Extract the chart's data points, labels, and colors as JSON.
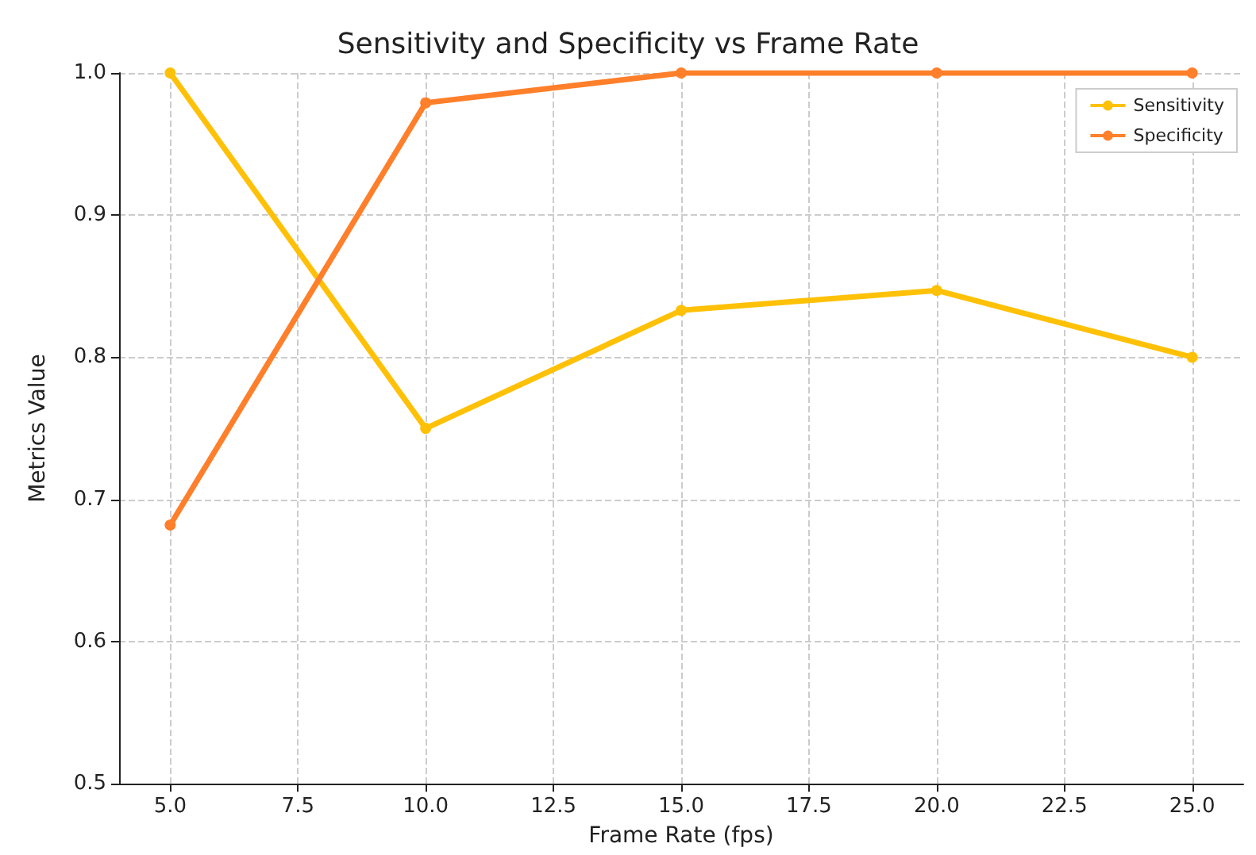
{
  "chart_data": {
    "type": "line",
    "title": "Sensitivity and Specificity vs Frame Rate",
    "xlabel": "Frame Rate (fps)",
    "ylabel": "Metrics Value",
    "x": [
      5,
      10,
      15,
      20,
      25
    ],
    "series": [
      {
        "name": "Sensitivity",
        "color": "#ffc107",
        "values": [
          1.0,
          0.75,
          0.833,
          0.847,
          0.8
        ]
      },
      {
        "name": "Specificity",
        "color": "#ff7f2a",
        "values": [
          0.682,
          0.979,
          1.0,
          1.0,
          1.0
        ]
      }
    ],
    "xlim": [
      4,
      26
    ],
    "xticks": [
      {
        "value": 5,
        "label": "5.0"
      },
      {
        "value": 7.5,
        "label": "7.5"
      },
      {
        "value": 10,
        "label": "10.0"
      },
      {
        "value": 12.5,
        "label": "12.5"
      },
      {
        "value": 15,
        "label": "15.0"
      },
      {
        "value": 17.5,
        "label": "17.5"
      },
      {
        "value": 20,
        "label": "20.0"
      },
      {
        "value": 22.5,
        "label": "22.5"
      },
      {
        "value": 25,
        "label": "25.0"
      }
    ],
    "ylim": [
      0.5,
      1.0
    ],
    "yticks": [
      0.5,
      0.6,
      0.7,
      0.8,
      0.9,
      {
        "value": 1,
        "label": "1.0"
      }
    ],
    "grid": true,
    "legend": "top right",
    "marker": "circle",
    "line_style": "solid"
  }
}
